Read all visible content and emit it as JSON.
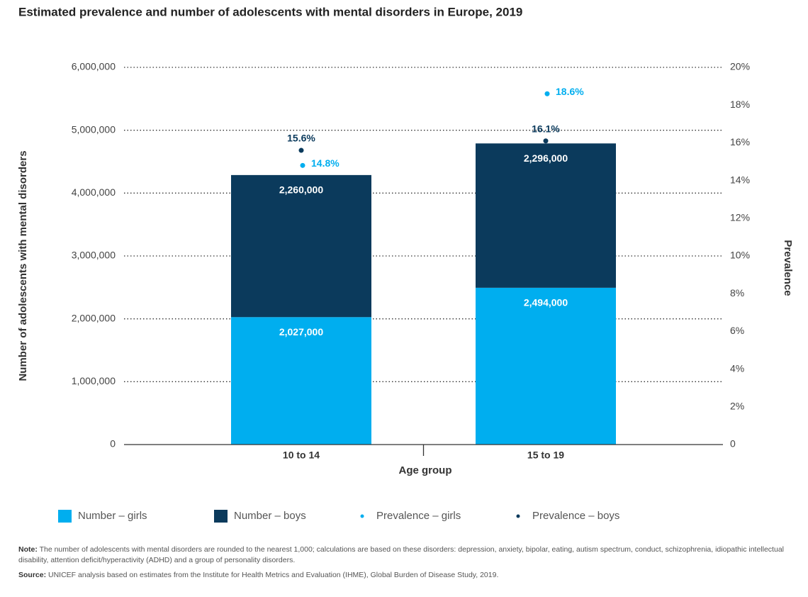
{
  "chart_data": {
    "type": "bar",
    "stacked": true,
    "title": "Estimated prevalence and number of adolescents with mental disorders in Europe, 2019",
    "x_label": "Age group",
    "y_label": "Number of adolescents with mental disorders",
    "y2_label": "Prevalence",
    "categories": [
      "10 to 14",
      "15 to 19"
    ],
    "series": [
      {
        "name": "Number – girls",
        "color": "#00aeef",
        "values": [
          2027000,
          2494000
        ],
        "value_labels": [
          "2,027,000",
          "2,494,000"
        ]
      },
      {
        "name": "Number – boys",
        "color": "#0b3a5c",
        "values": [
          2260000,
          2296000
        ],
        "value_labels": [
          "2,260,000",
          "2,296,000"
        ]
      },
      {
        "name": "Prevalence – girls",
        "type": "scatter",
        "axis": "y2",
        "color": "#00aeef",
        "values": [
          14.8,
          18.6
        ],
        "value_labels": [
          "14.8%",
          "18.6%"
        ]
      },
      {
        "name": "Prevalence – boys",
        "type": "scatter",
        "axis": "y2",
        "color": "#0b3a5c",
        "values": [
          15.6,
          16.1
        ],
        "value_labels": [
          "15.6%",
          "16.1%"
        ]
      }
    ],
    "ylim": [
      0,
      6000000
    ],
    "yticks": [
      0,
      {
        "value": 1000000,
        "label": "1,000,000"
      },
      {
        "value": 2000000,
        "label": "2,000,000"
      },
      {
        "value": 3000000,
        "label": "3,000,000"
      },
      {
        "value": 4000000,
        "label": "4,000,000"
      },
      {
        "value": 5000000,
        "label": "5,000,000"
      },
      {
        "value": 6000000,
        "label": "6,000,000"
      }
    ],
    "y2lim": [
      0,
      20
    ],
    "y2ticks": [
      0,
      {
        "value": 2,
        "label": "2%"
      },
      {
        "value": 4,
        "label": "4%"
      },
      {
        "value": 6,
        "label": "6%"
      },
      {
        "value": 8,
        "label": "8%"
      },
      {
        "value": 10,
        "label": "10%"
      },
      {
        "value": 12,
        "label": "12%"
      },
      {
        "value": 14,
        "label": "14%"
      },
      {
        "value": 16,
        "label": "16%"
      },
      {
        "value": 18,
        "label": "18%"
      },
      {
        "value": 20,
        "label": "20%"
      }
    ],
    "grid": true,
    "notes": [
      {
        "label": "Note:",
        "text": "The number of adolescents with mental disorders are rounded to the nearest 1,000; calculations are based on these disorders: depression, anxiety, bipolar, eating, autism spectrum, conduct, schizophrenia, idiopathic intellectual disability, attention deficit/hyperactivity (ADHD) and a group of personality disorders."
      },
      {
        "label": "Source:",
        "text": "UNICEF analysis based on estimates from the Institute for Health Metrics and Evaluation (IHME), Global Burden of Disease Study, 2019."
      }
    ]
  }
}
